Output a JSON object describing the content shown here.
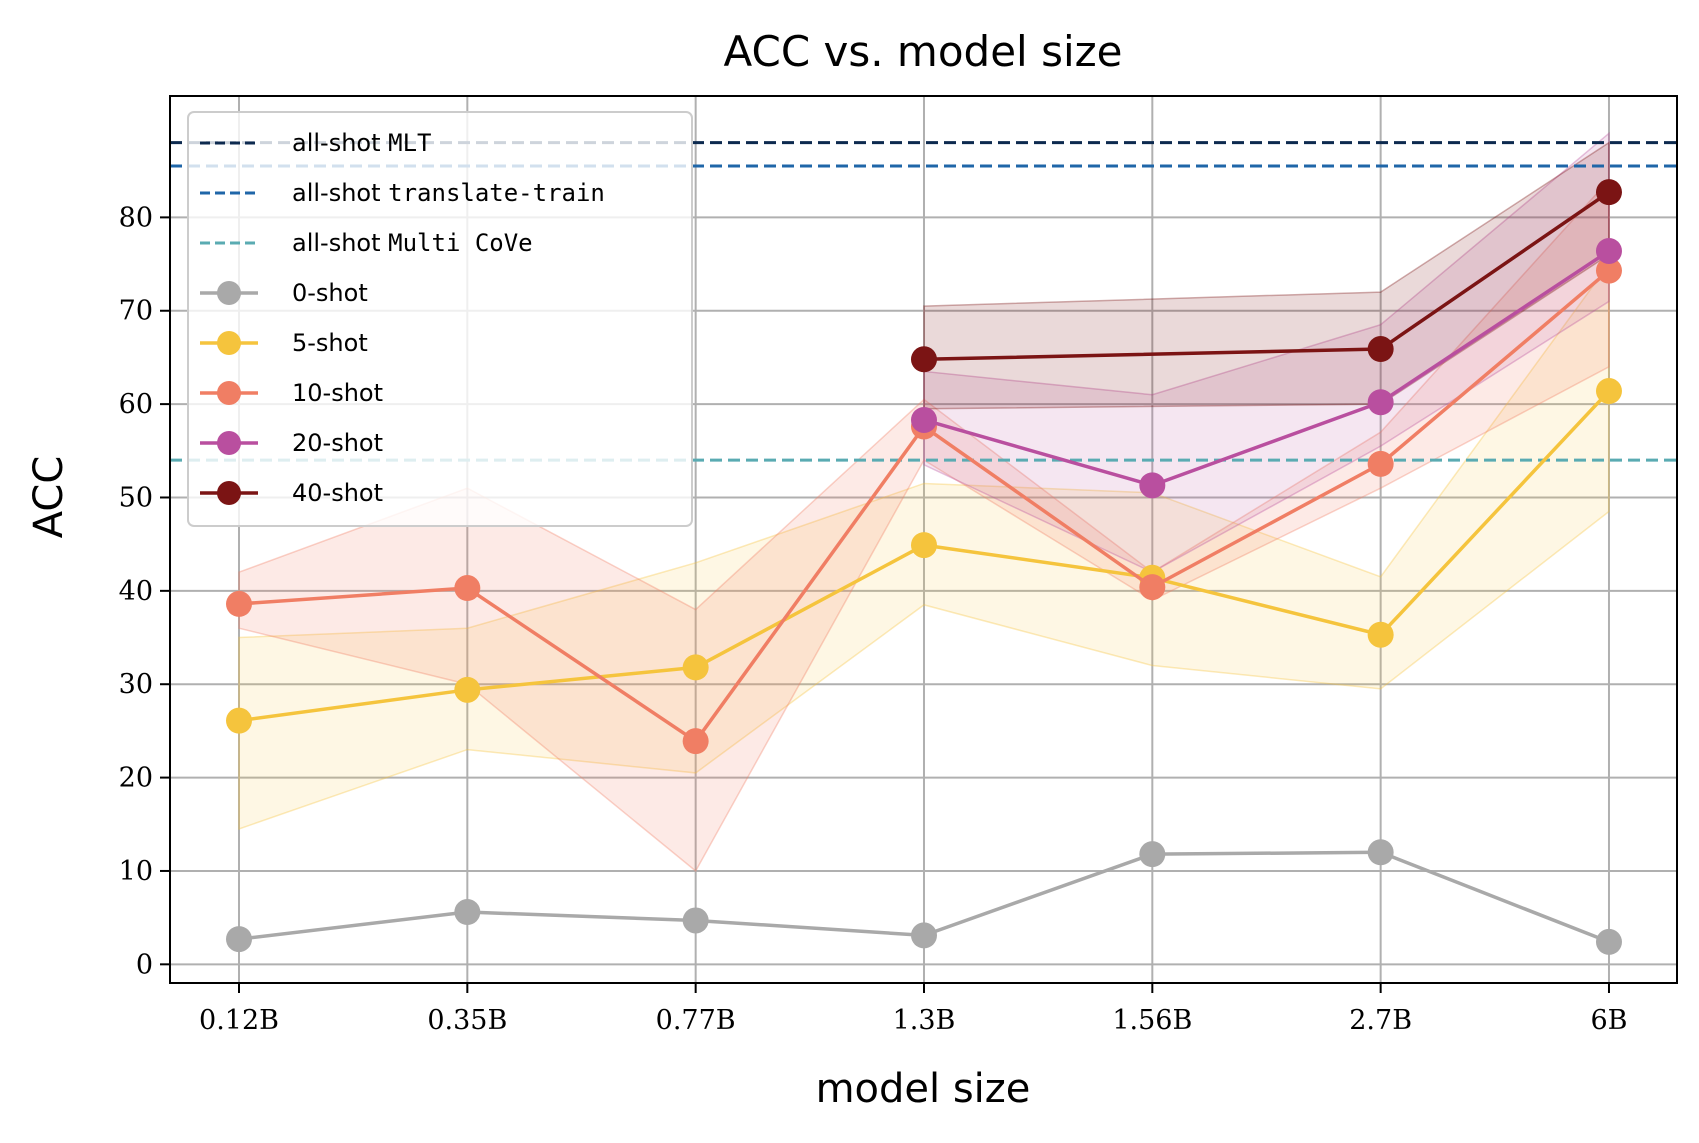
{
  "chart_data": {
    "type": "line",
    "title": "ACC vs. model size",
    "xlabel": "model size",
    "ylabel": "ACC",
    "categories": [
      "0.12B",
      "0.35B",
      "0.77B",
      "1.3B",
      "1.56B",
      "2.7B",
      "6B"
    ],
    "yticks": [
      0,
      10,
      20,
      30,
      40,
      50,
      60,
      70,
      80
    ],
    "ylim": [
      -2,
      93
    ],
    "grid": true,
    "legend_position": "top-left",
    "reference_lines": [
      {
        "prefix": "all-shot",
        "name": "MLT",
        "value": 88.0,
        "color": "#0d2a4f"
      },
      {
        "prefix": "all-shot",
        "name": "translate-train",
        "value": 85.5,
        "color": "#1f66a8"
      },
      {
        "prefix": "all-shot",
        "name": "Multi CoVe",
        "value": 54.0,
        "color": "#5aabb2"
      }
    ],
    "series": [
      {
        "name": "0-shot",
        "color": "#a9a9a9",
        "band": false,
        "values": [
          2.7,
          5.6,
          4.7,
          3.1,
          11.8,
          12.0,
          2.4
        ]
      },
      {
        "name": "5-shot",
        "color": "#f5c43d",
        "band": true,
        "values": [
          26.1,
          29.4,
          31.8,
          44.9,
          41.4,
          35.3,
          61.4
        ],
        "lower": [
          14.5,
          23.0,
          20.5,
          38.5,
          32.0,
          29.5,
          48.5
        ],
        "upper": [
          35.0,
          36.0,
          43.0,
          51.5,
          50.5,
          41.5,
          75.0
        ]
      },
      {
        "name": "10-shot",
        "color": "#f07e64",
        "band": true,
        "values": [
          38.6,
          40.3,
          23.9,
          57.6,
          40.4,
          53.6,
          74.3
        ],
        "lower": [
          36.0,
          30.0,
          10.0,
          54.0,
          39.0,
          51.0,
          64.0
        ],
        "upper": [
          42.0,
          51.0,
          38.0,
          60.5,
          42.0,
          57.0,
          84.0
        ]
      },
      {
        "name": "20-shot",
        "color": "#b94f9f",
        "band": true,
        "values": [
          null,
          null,
          null,
          58.3,
          51.3,
          60.2,
          76.4
        ],
        "lower": [
          null,
          null,
          null,
          53.5,
          42.0,
          55.5,
          71.0
        ],
        "upper": [
          null,
          null,
          null,
          63.5,
          61.0,
          68.5,
          89.0
        ]
      },
      {
        "name": "40-shot",
        "color": "#7b1414",
        "band": true,
        "values": [
          null,
          null,
          null,
          64.8,
          null,
          65.9,
          82.7
        ],
        "lower": [
          null,
          null,
          null,
          59.5,
          null,
          60.0,
          76.0
        ],
        "upper": [
          null,
          null,
          null,
          70.5,
          null,
          72.0,
          88.0
        ]
      }
    ]
  }
}
